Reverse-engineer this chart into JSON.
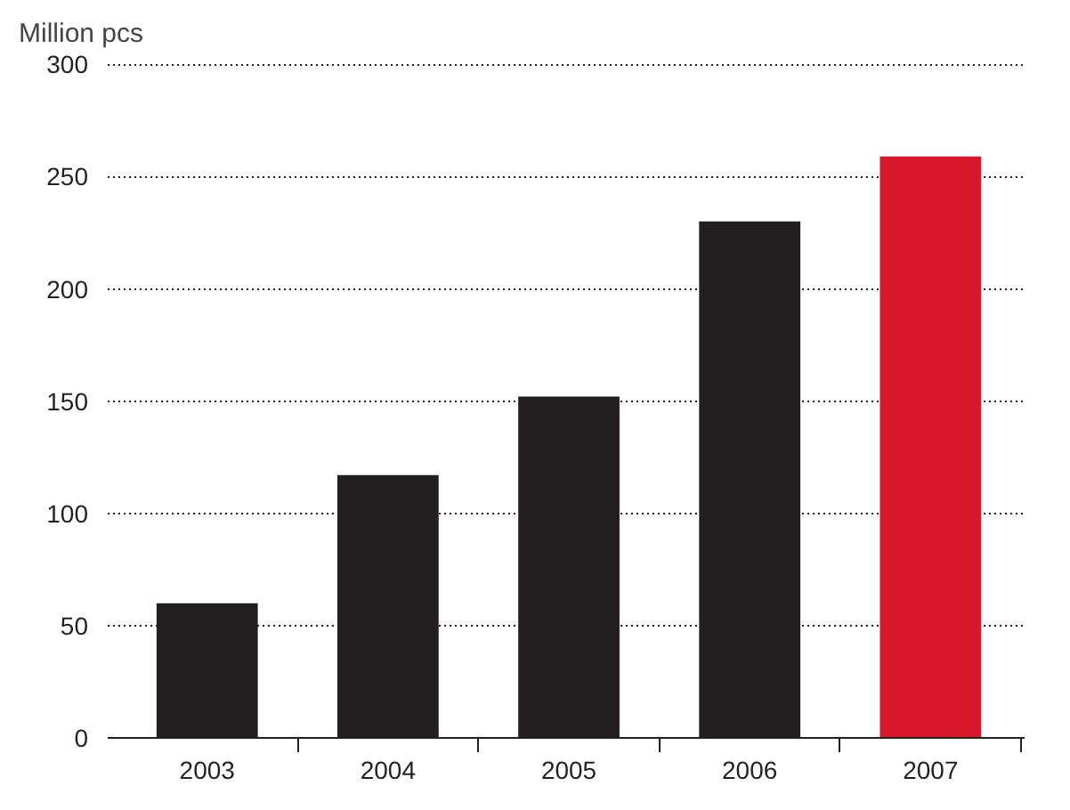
{
  "chart_data": {
    "type": "bar",
    "ylabel": "Million pcs",
    "categories": [
      "2003",
      "2004",
      "2005",
      "2006",
      "2007"
    ],
    "values": [
      60,
      117,
      152,
      230,
      259
    ],
    "colors": [
      "#231f20",
      "#231f20",
      "#231f20",
      "#231f20",
      "#d7182a"
    ],
    "ylim": [
      0,
      300
    ],
    "yticks": [
      0,
      50,
      100,
      150,
      200,
      250,
      300
    ],
    "grid": "y"
  }
}
